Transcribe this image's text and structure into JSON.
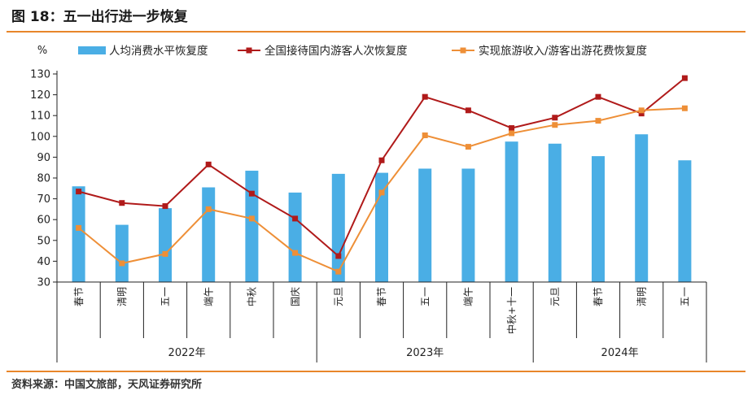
{
  "figure": {
    "title": "图 18：五一出行进一步恢复",
    "source": "资料来源：中国文旅部，天风证券研究所"
  },
  "colors": {
    "accent_rule": "#e8862a",
    "bar": "#4aaee5",
    "line_trips": "#b01a1a",
    "line_revenue": "#ee8f37"
  },
  "chart_data": {
    "type": "bar",
    "y_unit": "%",
    "ylim": [
      30,
      130
    ],
    "yticks": [
      30,
      40,
      50,
      60,
      70,
      80,
      90,
      100,
      110,
      120,
      130
    ],
    "grid": false,
    "legend_position": "top",
    "categories": [
      "春节",
      "清明",
      "五一",
      "端午",
      "中秋",
      "国庆",
      "元旦",
      "春节",
      "五一",
      "端午",
      "中秋+十一",
      "元旦",
      "春节",
      "清明",
      "五一"
    ],
    "year_groups": [
      {
        "label": "2022年",
        "count": 6
      },
      {
        "label": "2023年",
        "count": 5
      },
      {
        "label": "2024年",
        "count": 4
      }
    ],
    "series": [
      {
        "name": "人均消费水平恢复度",
        "kind": "bar",
        "values": [
          76,
          57.5,
          65.5,
          75.5,
          83.5,
          73,
          82,
          82.5,
          84.5,
          84.5,
          97.5,
          96.5,
          90.5,
          101,
          88.5
        ]
      },
      {
        "name": "全国接待国内游客人次恢复度",
        "kind": "line",
        "marker": "square",
        "values": [
          73.5,
          68,
          66.5,
          86.5,
          72.5,
          60.5,
          42.5,
          88.5,
          119,
          112.5,
          104,
          109,
          119,
          111,
          128
        ]
      },
      {
        "name": "实现旅游收入/游客出游花费恢复度",
        "kind": "line",
        "marker": "square",
        "values": [
          56,
          39,
          43.5,
          65,
          60.5,
          44,
          35,
          73,
          100.5,
          95,
          101.5,
          105.5,
          107.5,
          112.5,
          113.5
        ]
      }
    ]
  }
}
